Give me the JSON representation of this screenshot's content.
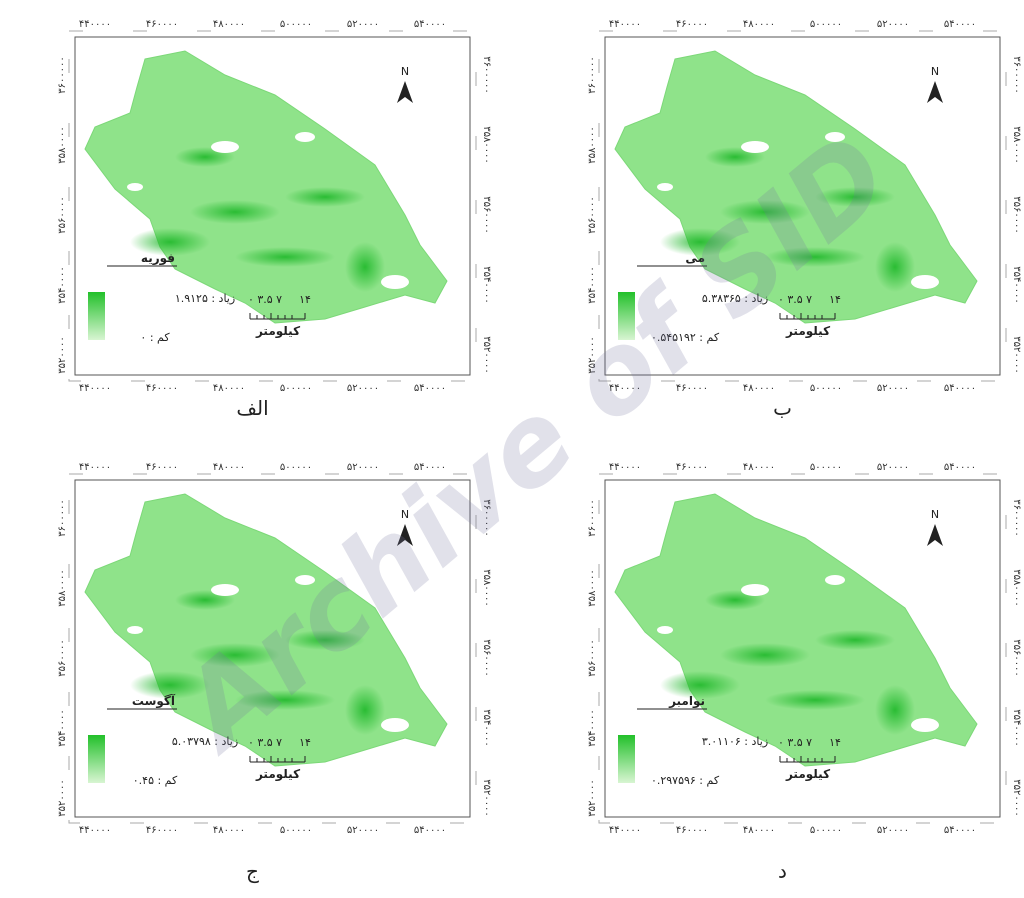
{
  "axes": {
    "x_labels": [
      "۴۴۰۰۰۰",
      "۴۶۰۰۰۰",
      "۴۸۰۰۰۰",
      "۵۰۰۰۰۰",
      "۵۲۰۰۰۰",
      "۵۴۰۰۰۰"
    ],
    "y_labels": [
      "۳۶۰۰۰۰۰",
      "۳۵۸۰۰۰۰",
      "۳۵۶۰۰۰۰",
      "۳۵۴۰۰۰۰",
      "۳۵۲۰۰۰۰"
    ]
  },
  "scale_bar": {
    "start_labels": "۰ ۳.۵ ۷",
    "end_label": "۱۴",
    "unit": "کیلومتر"
  },
  "north_label": "N",
  "panels": [
    {
      "caption": "الف",
      "legend_title": "فوریه",
      "high_label": "زیاد : ۱.۹۱۲۵",
      "low_label": "کم : ۰"
    },
    {
      "caption": "ب",
      "legend_title": "می",
      "high_label": "زیاد : ۵.۳۸۳۶۵",
      "low_label": "کم : ۰.۵۴۵۱۹۲"
    },
    {
      "caption": "ج",
      "legend_title": "آگوست",
      "high_label": "زیاد : ۵.۰۳۷۹۸",
      "low_label": "کم : ۰.۴۵"
    },
    {
      "caption": "د",
      "legend_title": "نوامبر",
      "high_label": "زیاد : ۳.۰۱۱۰۶",
      "low_label": "کم : ۰.۲۹۷۵۹۶"
    }
  ],
  "watermark": "Archive of SID"
}
